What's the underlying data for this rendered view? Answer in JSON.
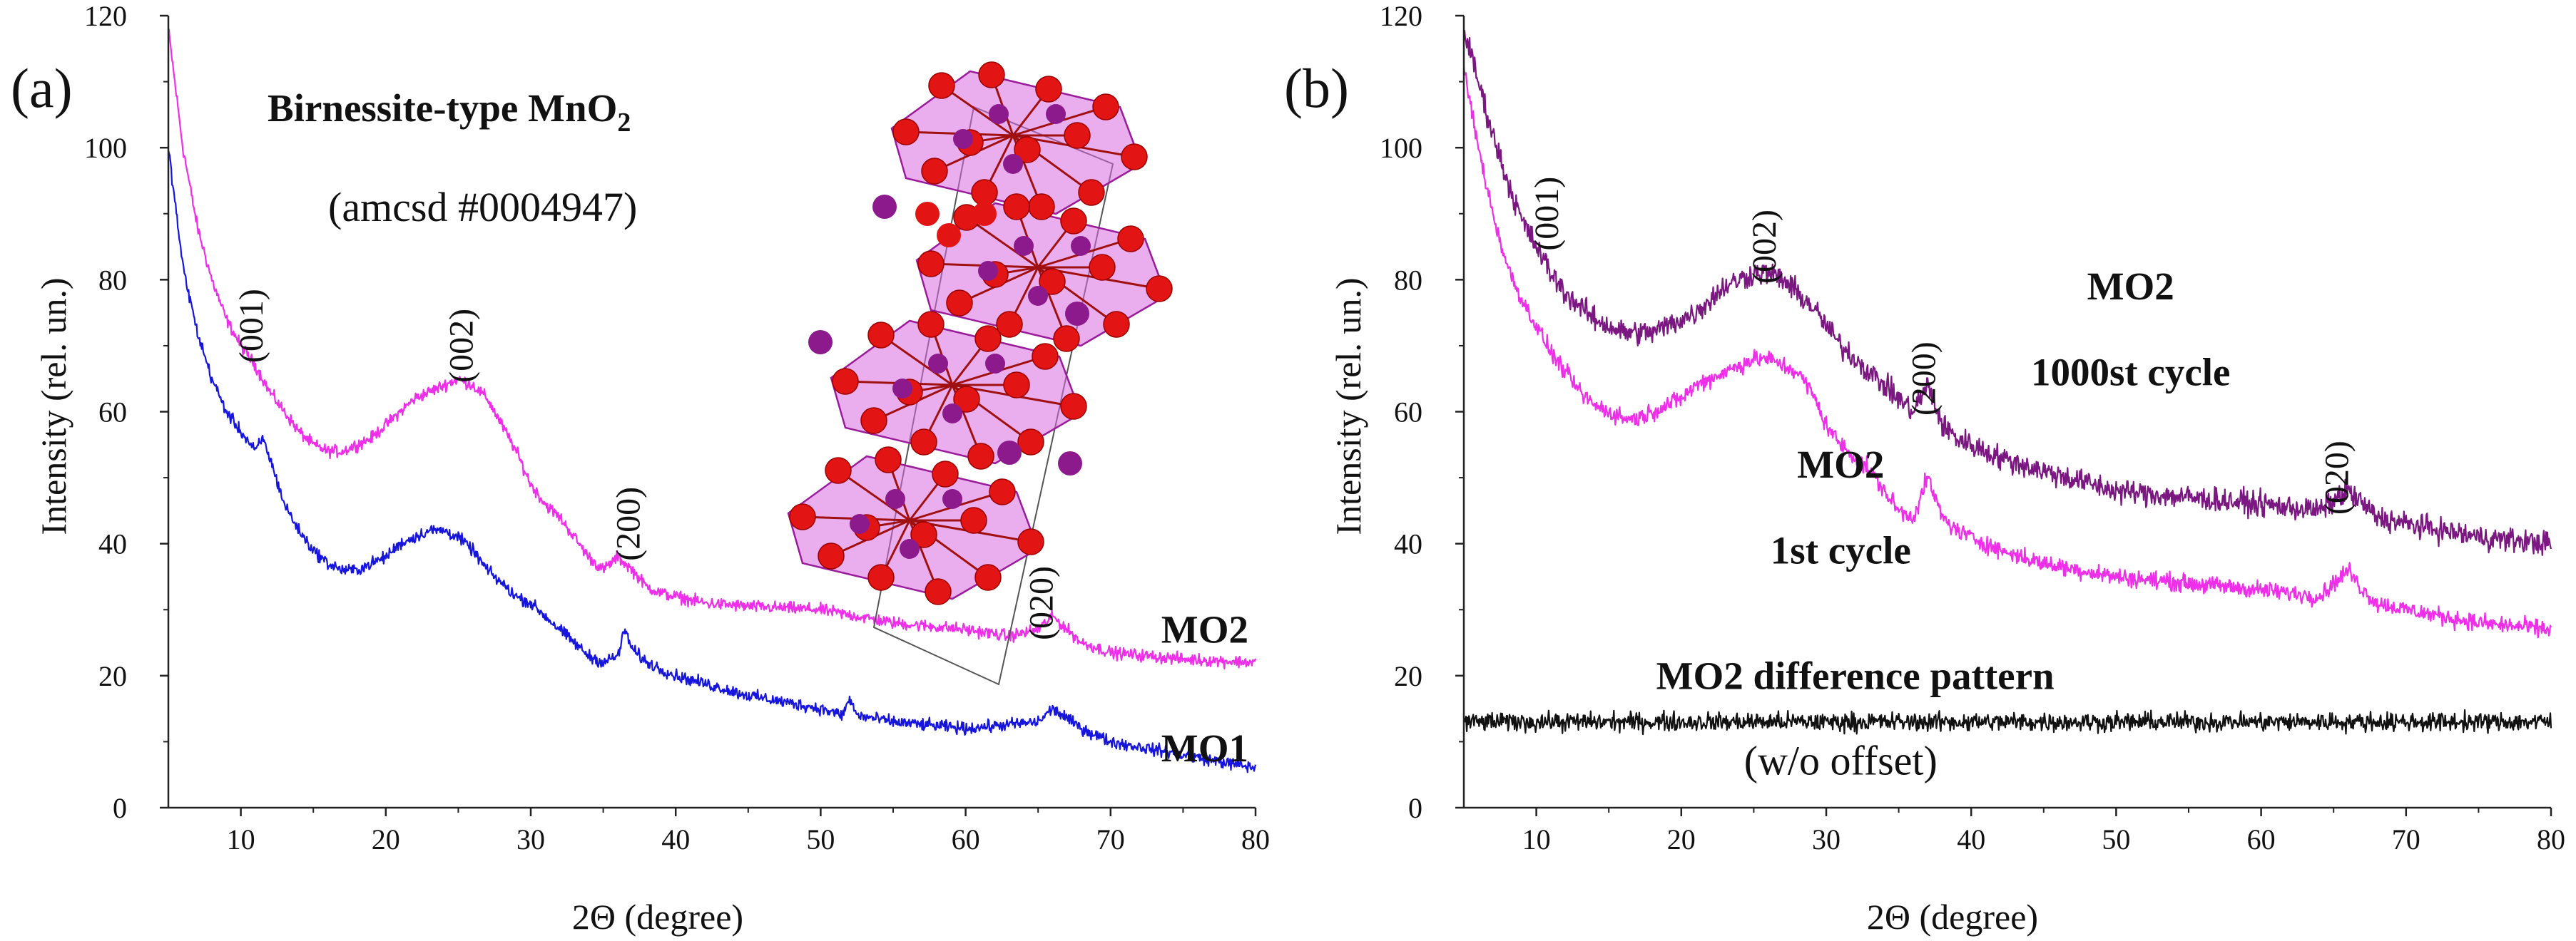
{
  "chart_data": [
    {
      "type": "line",
      "panel_label": "(a)",
      "xlabel": "2Θ (degree)",
      "ylabel": "Intensity (rel. un.)",
      "xlim": [
        5,
        80
      ],
      "ylim": [
        0,
        120
      ],
      "xticks": [
        10,
        20,
        30,
        40,
        50,
        60,
        70,
        80
      ],
      "yticks": [
        0,
        20,
        40,
        60,
        80,
        100,
        120
      ],
      "grid": false,
      "title_note": {
        "text": "Birnessite-type MnO",
        "subscript": "2"
      },
      "subtitle_note": "(amcsd #0004947)",
      "inset": "crystal structure of birnessite-type MnO2 (red O atoms, purple Mn atoms, MnO6 octahedra layers)",
      "series": [
        {
          "name": "MO2",
          "color": "#ee2ee8",
          "noise": 0.9,
          "x": [
            5,
            6,
            7,
            8,
            9,
            10,
            11,
            12,
            13,
            14,
            15,
            16,
            17,
            18,
            19,
            20,
            21,
            22,
            23,
            24,
            25,
            26,
            27,
            28,
            29,
            30,
            31,
            32,
            33,
            34,
            35,
            36,
            37,
            38,
            39,
            40,
            42,
            45,
            50,
            55,
            60,
            63,
            65,
            66,
            67,
            68,
            70,
            75,
            80
          ],
          "y": [
            118,
            100,
            88,
            80,
            74,
            70,
            67,
            63,
            60,
            57,
            55,
            54,
            54,
            55,
            56,
            58,
            60,
            62,
            63,
            64,
            65,
            64,
            62,
            58,
            54,
            49,
            46,
            44,
            41,
            38,
            36,
            38,
            36,
            33.5,
            32.5,
            32,
            31,
            30.5,
            30,
            28,
            27,
            26,
            27,
            29,
            27,
            25,
            23.5,
            22.5,
            22
          ]
        },
        {
          "name": "MO1",
          "color": "#1515dd",
          "noise": 0.9,
          "x": [
            5,
            6,
            7,
            8,
            9,
            10,
            11,
            11.5,
            12,
            13,
            14,
            15,
            16,
            17,
            18,
            19,
            20,
            21,
            22,
            23,
            24,
            25,
            26,
            27,
            28,
            29,
            30,
            31,
            32,
            33,
            34,
            35,
            36,
            36.5,
            37,
            38,
            40,
            45,
            50,
            51.5,
            52,
            52.5,
            55,
            60,
            65,
            66,
            67,
            68,
            70,
            75,
            80
          ],
          "y": [
            100,
            82,
            72,
            65,
            60,
            57,
            54,
            56,
            53,
            46,
            42,
            39,
            37,
            36,
            36,
            37,
            38,
            40,
            41,
            42,
            42,
            41,
            39,
            36,
            34,
            32,
            31,
            29,
            27,
            25,
            23,
            22,
            23,
            27,
            24,
            22,
            20,
            17,
            15,
            14,
            16.5,
            14,
            13,
            12,
            13,
            15,
            13.5,
            12,
            10,
            8,
            6
          ]
        }
      ],
      "annotations": [
        {
          "text": "(001)",
          "x": 11.5,
          "y": 73
        },
        {
          "text": "(002)",
          "x": 26,
          "y": 70
        },
        {
          "text": "(200)",
          "x": 37.5,
          "y": 43
        },
        {
          "text": "(020)",
          "x": 66,
          "y": 31
        }
      ],
      "series_labels": [
        {
          "text": "MO2",
          "x": 76.5,
          "y": 25
        },
        {
          "text": "MO1",
          "x": 76.5,
          "y": 7
        }
      ]
    },
    {
      "type": "line",
      "panel_label": "(b)",
      "xlabel": "2Θ (degree)",
      "ylabel": "Intensity (rel. un.)",
      "xlim": [
        5,
        80
      ],
      "ylim": [
        0,
        120
      ],
      "xticks": [
        10,
        20,
        30,
        40,
        50,
        60,
        70,
        80
      ],
      "yticks": [
        0,
        20,
        40,
        60,
        80,
        100,
        120
      ],
      "grid": false,
      "series": [
        {
          "name": "MO2 1000st cycle",
          "color": "#7a1780",
          "noise": 1.8,
          "x": [
            5,
            6,
            7,
            8,
            9,
            10,
            11,
            12,
            13,
            14,
            15,
            16,
            17,
            18,
            19,
            20,
            21,
            22,
            23,
            24,
            25,
            26,
            27,
            28,
            29,
            30,
            31,
            32,
            33,
            34,
            35,
            36,
            37,
            38,
            39,
            40,
            42,
            45,
            50,
            55,
            60,
            64,
            66,
            67,
            68,
            70,
            75,
            80
          ],
          "y": [
            118,
            110,
            102,
            95,
            89,
            85,
            81,
            78,
            76,
            74,
            73,
            72,
            72,
            72,
            73,
            74,
            75,
            77,
            79,
            80,
            81,
            81,
            80,
            78,
            76,
            73,
            70,
            68,
            66,
            64,
            62,
            60,
            64,
            58,
            56,
            55,
            53,
            51,
            48,
            47,
            46,
            45,
            48,
            46,
            44,
            43,
            41,
            40
          ]
        },
        {
          "name": "MO2 1st cycle",
          "color": "#ee2ee8",
          "noise": 1.3,
          "x": [
            5,
            6,
            7,
            8,
            9,
            10,
            11,
            12,
            13,
            14,
            15,
            16,
            17,
            18,
            19,
            20,
            21,
            22,
            23,
            24,
            25,
            26,
            27,
            28,
            29,
            30,
            31,
            32,
            33,
            34,
            35,
            36,
            37,
            38,
            39,
            40,
            42,
            45,
            50,
            55,
            60,
            64,
            66,
            67,
            68,
            70,
            75,
            80
          ],
          "y": [
            112,
            100,
            90,
            82,
            77,
            73,
            69,
            66,
            63,
            61,
            60,
            59,
            59,
            60,
            61,
            62,
            64,
            65,
            66,
            67,
            68,
            68,
            67,
            66,
            63,
            58,
            55,
            53,
            51,
            48,
            45,
            44,
            50,
            44,
            42,
            41,
            39,
            37,
            35,
            34,
            33,
            32,
            36,
            33,
            31,
            30,
            28,
            27
          ]
        },
        {
          "name": "MO2 difference pattern",
          "color": "#111111",
          "noise": 1.4,
          "x": [
            5,
            80
          ],
          "y": [
            13,
            13
          ]
        }
      ],
      "annotations": [
        {
          "text": "(001)",
          "x": 11.5,
          "y": 90
        },
        {
          "text": "(002)",
          "x": 26.5,
          "y": 85
        },
        {
          "text": "(200)",
          "x": 37.5,
          "y": 65
        },
        {
          "text": "(020)",
          "x": 66,
          "y": 50
        }
      ],
      "series_labels": [
        {
          "text": "MO2",
          "x": 51,
          "y": 77
        },
        {
          "text": "1000st cycle",
          "x": 51,
          "y": 64
        },
        {
          "text": "MO2",
          "x": 31,
          "y": 50
        },
        {
          "text": "1st cycle",
          "x": 31,
          "y": 37
        },
        {
          "text": "MO2 difference pattern",
          "x": 32,
          "y": 18
        },
        {
          "text": "(w/o offset)",
          "x": 31,
          "y": 5
        }
      ]
    }
  ]
}
